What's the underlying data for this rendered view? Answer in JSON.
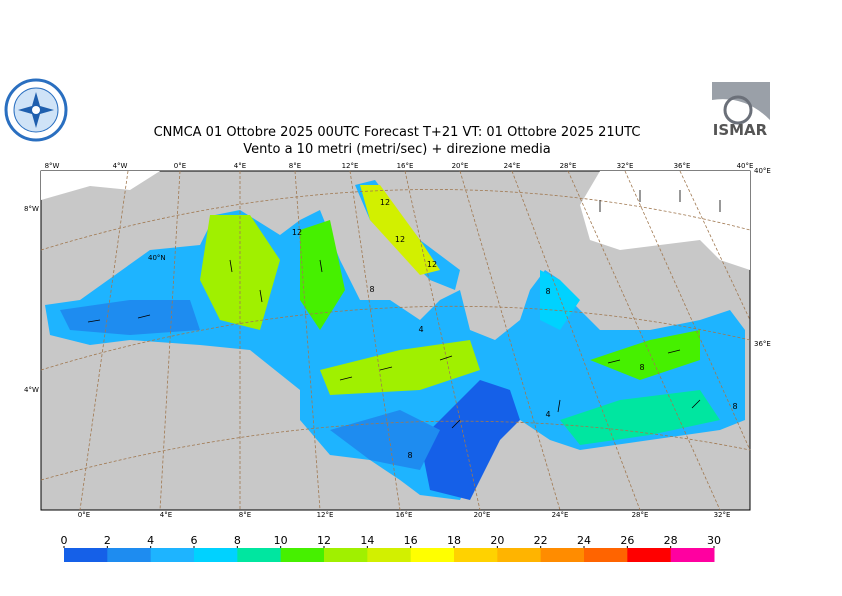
{
  "header": {
    "title": "CNMCA 01  Ottobre  2025 00UTC Forecast T+21 VT: 01  Ottobre  2025 21UTC",
    "subtitle": "Vento a 10 metri (metri/sec) + direzione media",
    "logo_right": "ISMAR"
  },
  "map": {
    "top_labels": [
      "8°W",
      "4°W",
      "0°E",
      "4°E",
      "8°E",
      "12°E",
      "16°E",
      "20°E",
      "24°E",
      "28°E",
      "32°E",
      "36°E",
      "40°E"
    ],
    "bottom_labels": [
      "0°E",
      "4°E",
      "8°E",
      "12°E",
      "16°E",
      "20°E",
      "24°E",
      "28°E",
      "32°E"
    ],
    "left_labels": [
      "8°W",
      "40°N",
      "4°W"
    ],
    "right_labels": [
      "40°E",
      "36°E"
    ],
    "contour_labels": [
      "12",
      "12",
      "12",
      "8",
      "12",
      "8",
      "4",
      "8",
      "4",
      "8",
      "8"
    ]
  },
  "colorbar": {
    "ticks": [
      0,
      2,
      4,
      6,
      8,
      10,
      12,
      14,
      16,
      18,
      20,
      22,
      24,
      26,
      28,
      30
    ],
    "colors": [
      "#1560e8",
      "#1e8cf0",
      "#1eb4ff",
      "#00d2ff",
      "#00e6a0",
      "#46f000",
      "#a0f000",
      "#d2f000",
      "#ffff00",
      "#ffd200",
      "#ffb400",
      "#ff8c00",
      "#ff6400",
      "#ff0000",
      "#ff00a0"
    ]
  }
}
